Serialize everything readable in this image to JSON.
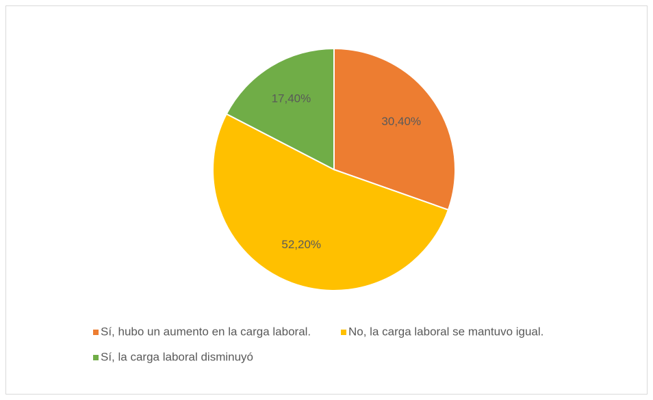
{
  "chart_data": {
    "type": "pie",
    "categories": [
      "Sí, hubo un aumento en la carga laboral.",
      "No, la carga laboral se mantuvo igual.",
      "Sí, la carga laboral disminuyó"
    ],
    "values": [
      30.4,
      52.2,
      17.4
    ],
    "value_labels": [
      "30,40%",
      "52,20%",
      "17,40%"
    ],
    "colors": [
      "#ed7d31",
      "#ffc000",
      "#70ad47"
    ],
    "legend": "bottom"
  }
}
